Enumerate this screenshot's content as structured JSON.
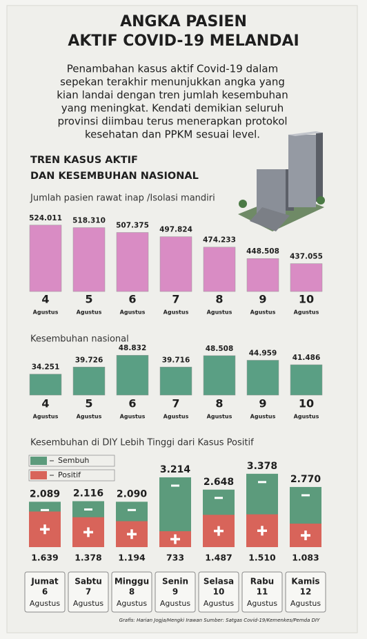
{
  "title": [
    "ANGKA PASIEN",
    "AKTIF COVID-19 MELANDAI"
  ],
  "intro": [
    "Penambahan kasus aktif Covid-19 dalam",
    "sepekan terakhir menunjukkan angka yang",
    "kian landai dengan tren jumlah kesembuhan",
    "yang meningkat. Kendati demikian seluruh",
    "provinsi diimbau terus menerapkan protokol",
    "kesehatan dan PPKM sesuai level."
  ],
  "section_title": [
    "TREN KASUS AKTIF",
    "DAN KESEMBUHAN NASIONAL"
  ],
  "chart_data": [
    {
      "type": "bar",
      "title": "Jumlah pasien rawat inap /Isolasi mandiri",
      "categories": [
        "4",
        "5",
        "6",
        "7",
        "8",
        "9",
        "10"
      ],
      "category_sublabel": "Agustus",
      "values": [
        524011,
        518310,
        507375,
        497824,
        474233,
        448508,
        437055
      ],
      "value_labels": [
        "524.011",
        "518.310",
        "507.375",
        "497.824",
        "474.233",
        "448.508",
        "437.055"
      ],
      "color": "#d98cc4",
      "ylim": [
        374000,
        530000
      ]
    },
    {
      "type": "bar",
      "title": "Kesembuhan nasional",
      "categories": [
        "4",
        "5",
        "6",
        "7",
        "8",
        "9",
        "10"
      ],
      "category_sublabel": "Agustus",
      "values": [
        34251,
        39726,
        48832,
        39716,
        48508,
        44959,
        41486
      ],
      "value_labels": [
        "34.251",
        "39.726",
        "48.832",
        "39.716",
        "48.508",
        "44.959",
        "41.486"
      ],
      "color": "#5a9f84",
      "ylim": [
        18000,
        50000
      ]
    },
    {
      "type": "overlap-bar",
      "title": "Kesembuhan di DIY Lebih Tinggi dari Kasus Positif",
      "categories": [
        "Jumat",
        "Sabtu",
        "Minggu",
        "Senin",
        "Selasa",
        "Rabu",
        "Kamis"
      ],
      "dates": [
        "6",
        "7",
        "8",
        "9",
        "10",
        "11",
        "12"
      ],
      "category_sublabel": "Agustus",
      "series": [
        {
          "name": "Sembuh",
          "color": "#5c9b7c",
          "values": [
            2089,
            2116,
            2090,
            3214,
            2648,
            3378,
            2770
          ],
          "value_labels": [
            "2.089",
            "2.116",
            "2.090",
            "3.214",
            "2.648",
            "3.378",
            "2.770"
          ]
        },
        {
          "name": "Positif",
          "color": "#d8645a",
          "values": [
            1639,
            1378,
            1194,
            733,
            1487,
            1510,
            1083
          ],
          "value_labels": [
            "1.639",
            "1.378",
            "1.194",
            "733",
            "1.487",
            "1.510",
            "1.083"
          ]
        }
      ],
      "ylim": [
        0,
        3500
      ]
    }
  ],
  "credit": "Grafis: Harian Jogja/Hengki Irawan  Sumber: Satgas Covid-19/Kemenkes/Pemda DIY"
}
